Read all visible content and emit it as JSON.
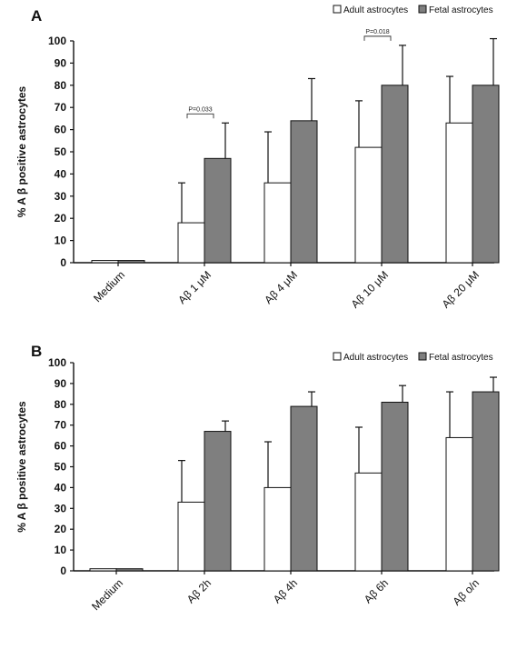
{
  "chart_data": [
    {
      "type": "bar",
      "panel_label": "A",
      "ylabel": "% A β positive astrocytes",
      "ylim": [
        0,
        100
      ],
      "yticks": [
        0,
        10,
        20,
        30,
        40,
        50,
        60,
        70,
        80,
        90,
        100
      ],
      "categories": [
        "Medium",
        "Aβ 1 μM",
        "Aβ 4 μM",
        "Aβ 10 μM",
        "Aβ 20 μM"
      ],
      "series": [
        {
          "name": "Adult astrocytes",
          "color": "#ffffff",
          "values": [
            1,
            18,
            36,
            52,
            63
          ],
          "errors": [
            0,
            18,
            23,
            21,
            21
          ]
        },
        {
          "name": "Fetal astrocytes",
          "color": "#7f7f7f",
          "values": [
            1,
            47,
            64,
            80,
            80
          ],
          "errors": [
            0,
            16,
            19,
            18,
            21
          ]
        }
      ],
      "annotations": [
        {
          "text": "P=0.033",
          "category_index": 1
        },
        {
          "text": "P=0.018",
          "category_index": 3
        }
      ],
      "legend_position": "top-right",
      "grid": false
    },
    {
      "type": "bar",
      "panel_label": "B",
      "ylabel": "% A β positive astrocytes",
      "ylim": [
        0,
        100
      ],
      "yticks": [
        0,
        10,
        20,
        30,
        40,
        50,
        60,
        70,
        80,
        90,
        100
      ],
      "categories": [
        "Medium",
        "Aβ 2h",
        "Aβ 4h",
        "Aβ 6h",
        "Aβ o/n"
      ],
      "series": [
        {
          "name": "Adult astrocytes",
          "color": "#ffffff",
          "values": [
            1,
            33,
            40,
            47,
            64
          ],
          "errors": [
            0,
            20,
            22,
            22,
            22
          ]
        },
        {
          "name": "Fetal astrocytes",
          "color": "#7f7f7f",
          "values": [
            1,
            67,
            79,
            81,
            86
          ],
          "errors": [
            0,
            5,
            7,
            8,
            7
          ]
        }
      ],
      "annotations": [],
      "legend_position": "top-right",
      "grid": false
    }
  ]
}
